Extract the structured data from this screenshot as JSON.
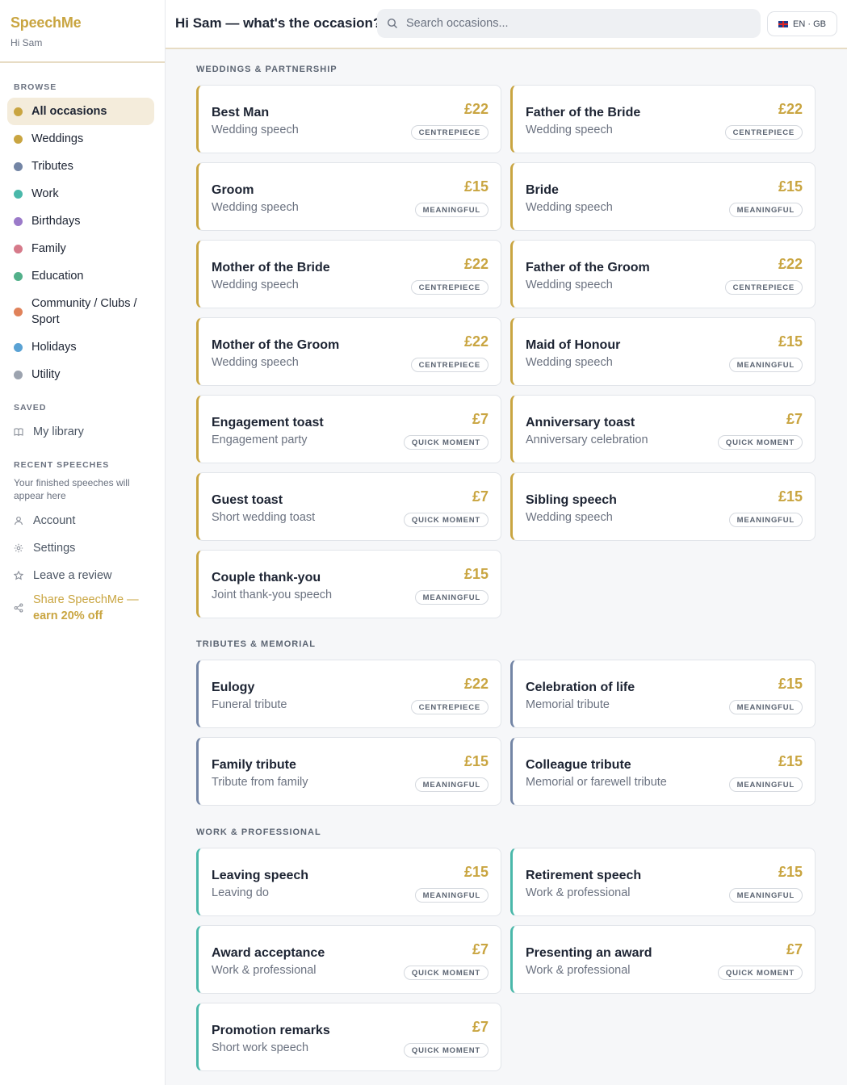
{
  "brand": {
    "name": "SpeechMe",
    "user": "Hi Sam"
  },
  "header": {
    "greeting": "Hi Sam — what's the occasion?",
    "search_placeholder": "Search occasions...",
    "language": "EN · GB"
  },
  "sidebar": {
    "browse_label": "BROWSE",
    "items": [
      {
        "label": "All occasions",
        "color": "#c9a541",
        "active": true
      },
      {
        "label": "Weddings",
        "color": "#c9a541"
      },
      {
        "label": "Tributes",
        "color": "#7385a5"
      },
      {
        "label": "Work",
        "color": "#4ab8aa"
      },
      {
        "label": "Birthdays",
        "color": "#9b7ac9"
      },
      {
        "label": "Family",
        "color": "#d67a8a"
      },
      {
        "label": "Education",
        "color": "#52b08a"
      },
      {
        "label": "Community / Clubs / Sport",
        "color": "#e0825a"
      },
      {
        "label": "Holidays",
        "color": "#5aa2d4"
      },
      {
        "label": "Utility",
        "color": "#9ca3af"
      }
    ],
    "saved_label": "SAVED",
    "library": "My library",
    "recent_label": "RECENT SPEECHES",
    "recent_note": "Your finished speeches will appear here",
    "account": "Account",
    "settings": "Settings",
    "review": "Leave a review",
    "share": "Share SpeechMe —",
    "share_bold": "earn 20% off"
  },
  "categories": [
    {
      "title": "WEDDINGS & PARTNERSHIP",
      "accent": "#c9a541",
      "cards": [
        {
          "title": "Best Man",
          "sub": "Wedding speech",
          "price": "£22",
          "badge": "CENTREPIECE"
        },
        {
          "title": "Father of the Bride",
          "sub": "Wedding speech",
          "price": "£22",
          "badge": "CENTREPIECE"
        },
        {
          "title": "Groom",
          "sub": "Wedding speech",
          "price": "£15",
          "badge": "MEANINGFUL"
        },
        {
          "title": "Bride",
          "sub": "Wedding speech",
          "price": "£15",
          "badge": "MEANINGFUL"
        },
        {
          "title": "Mother of the Bride",
          "sub": "Wedding speech",
          "price": "£22",
          "badge": "CENTREPIECE"
        },
        {
          "title": "Father of the Groom",
          "sub": "Wedding speech",
          "price": "£22",
          "badge": "CENTREPIECE"
        },
        {
          "title": "Mother of the Groom",
          "sub": "Wedding speech",
          "price": "£22",
          "badge": "CENTREPIECE"
        },
        {
          "title": "Maid of Honour",
          "sub": "Wedding speech",
          "price": "£15",
          "badge": "MEANINGFUL"
        },
        {
          "title": "Engagement toast",
          "sub": "Engagement party",
          "price": "£7",
          "badge": "QUICK MOMENT"
        },
        {
          "title": "Anniversary toast",
          "sub": "Anniversary celebration",
          "price": "£7",
          "badge": "QUICK MOMENT"
        },
        {
          "title": "Guest toast",
          "sub": "Short wedding toast",
          "price": "£7",
          "badge": "QUICK MOMENT"
        },
        {
          "title": "Sibling speech",
          "sub": "Wedding speech",
          "price": "£15",
          "badge": "MEANINGFUL"
        },
        {
          "title": "Couple thank-you",
          "sub": "Joint thank-you speech",
          "price": "£15",
          "badge": "MEANINGFUL"
        }
      ]
    },
    {
      "title": "TRIBUTES & MEMORIAL",
      "accent": "#7385a5",
      "cards": [
        {
          "title": "Eulogy",
          "sub": "Funeral tribute",
          "price": "£22",
          "badge": "CENTREPIECE"
        },
        {
          "title": "Celebration of life",
          "sub": "Memorial tribute",
          "price": "£15",
          "badge": "MEANINGFUL"
        },
        {
          "title": "Family tribute",
          "sub": "Tribute from family",
          "price": "£15",
          "badge": "MEANINGFUL"
        },
        {
          "title": "Colleague tribute",
          "sub": "Memorial or farewell tribute",
          "price": "£15",
          "badge": "MEANINGFUL"
        }
      ]
    },
    {
      "title": "WORK & PROFESSIONAL",
      "accent": "#4ab8aa",
      "cards": [
        {
          "title": "Leaving speech",
          "sub": "Leaving do",
          "price": "£15",
          "badge": "MEANINGFUL"
        },
        {
          "title": "Retirement speech",
          "sub": "Work & professional",
          "price": "£15",
          "badge": "MEANINGFUL"
        },
        {
          "title": "Award acceptance",
          "sub": "Work & professional",
          "price": "£7",
          "badge": "QUICK MOMENT"
        },
        {
          "title": "Presenting an award",
          "sub": "Work & professional",
          "price": "£7",
          "badge": "QUICK MOMENT"
        },
        {
          "title": "Promotion remarks",
          "sub": "Short work speech",
          "price": "£7",
          "badge": "QUICK MOMENT"
        }
      ]
    }
  ]
}
